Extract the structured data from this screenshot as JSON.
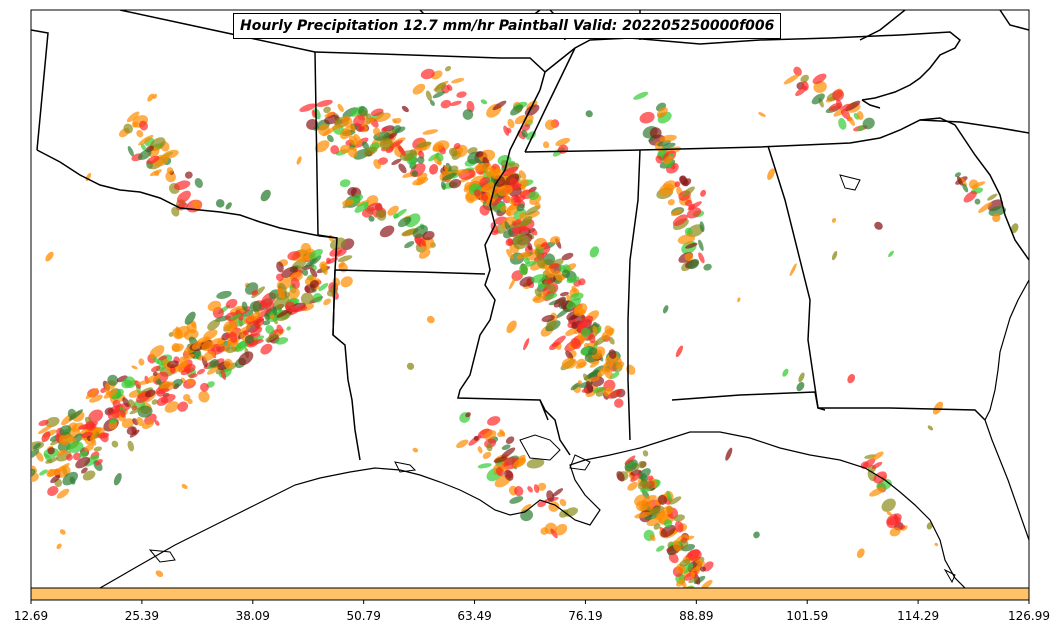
{
  "title": "Hourly Precipitation 12.7 mm/hr Paintball Valid: 202205250000f006",
  "colorbar": {
    "color": "#ffc266",
    "tick_labels": [
      "12.69",
      "25.39",
      "38.09",
      "50.79",
      "63.49",
      "76.19",
      "88.89",
      "101.59",
      "114.29",
      "126.99"
    ]
  },
  "colors": {
    "red": "#ff2a2a",
    "orange": "#ff8c00",
    "dark_red": "#8b1a1a",
    "olive": "#8b8b1a",
    "green": "#33cc33",
    "dark_green": "#2e7d32",
    "border": "#000000"
  }
}
